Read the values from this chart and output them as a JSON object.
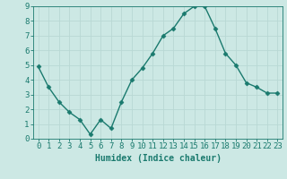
{
  "x": [
    0,
    1,
    2,
    3,
    4,
    5,
    6,
    7,
    8,
    9,
    10,
    11,
    12,
    13,
    14,
    15,
    16,
    17,
    18,
    19,
    20,
    21,
    22,
    23
  ],
  "y": [
    4.9,
    3.5,
    2.5,
    1.8,
    1.3,
    0.3,
    1.3,
    0.7,
    2.5,
    4.0,
    4.8,
    5.8,
    7.0,
    7.5,
    8.5,
    9.0,
    9.0,
    7.5,
    5.8,
    5.0,
    3.8,
    3.5,
    3.1,
    3.1
  ],
  "line_color": "#1a7a6e",
  "marker": "D",
  "marker_size": 2.5,
  "bg_color": "#cce8e4",
  "grid_color_major": "#b8d8d4",
  "grid_color_minor": "#d4ecea",
  "axis_color": "#1a7a6e",
  "bottom_bar_color": "#2a8a7e",
  "xlabel": "Humidex (Indice chaleur)",
  "xlabel_fontsize": 7,
  "tick_fontsize": 6.5,
  "ylim": [
    0,
    9
  ],
  "xlim": [
    -0.5,
    23.5
  ],
  "yticks": [
    0,
    1,
    2,
    3,
    4,
    5,
    6,
    7,
    8,
    9
  ],
  "xticks": [
    0,
    1,
    2,
    3,
    4,
    5,
    6,
    7,
    8,
    9,
    10,
    11,
    12,
    13,
    14,
    15,
    16,
    17,
    18,
    19,
    20,
    21,
    22,
    23
  ]
}
